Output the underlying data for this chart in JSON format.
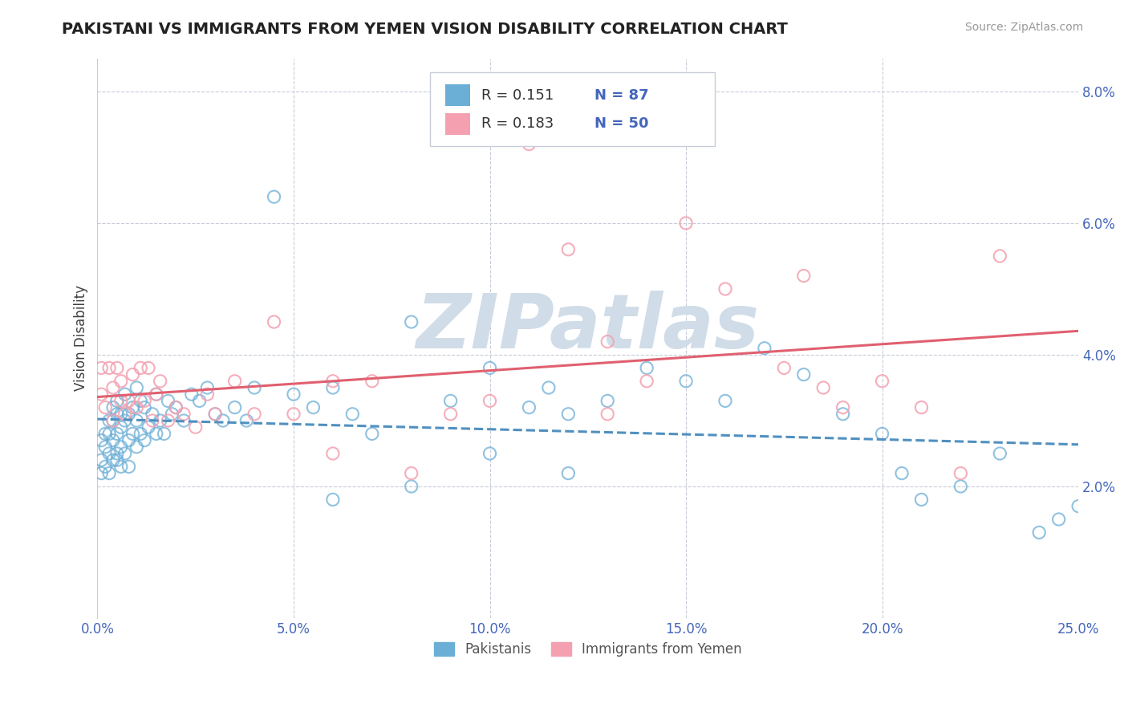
{
  "title": "PAKISTANI VS IMMIGRANTS FROM YEMEN VISION DISABILITY CORRELATION CHART",
  "source": "Source: ZipAtlas.com",
  "ylabel": "Vision Disability",
  "xlim": [
    0.0,
    0.25
  ],
  "ylim": [
    0.0,
    0.085
  ],
  "xticks": [
    0.0,
    0.05,
    0.1,
    0.15,
    0.2,
    0.25
  ],
  "yticks": [
    0.02,
    0.04,
    0.06,
    0.08
  ],
  "xticklabels": [
    "0.0%",
    "5.0%",
    "10.0%",
    "15.0%",
    "20.0%",
    "25.0%"
  ],
  "yticklabels": [
    "2.0%",
    "4.0%",
    "6.0%",
    "8.0%"
  ],
  "legend_r1": "R = 0.151",
  "legend_n1": "N = 87",
  "legend_r2": "R = 0.183",
  "legend_n2": "N = 50",
  "label1": "Pakistanis",
  "label2": "Immigrants from Yemen",
  "color1": "#6baed6",
  "color2": "#f4a0b0",
  "trendline1_color": "#5090c0",
  "trendline2_color": "#e06070",
  "watermark": "ZIPatlas",
  "watermark_color": "#d0dce8",
  "pakistanis_x": [
    0.001,
    0.001,
    0.001,
    0.002,
    0.002,
    0.002,
    0.003,
    0.003,
    0.003,
    0.003,
    0.004,
    0.004,
    0.004,
    0.004,
    0.005,
    0.005,
    0.005,
    0.005,
    0.005,
    0.006,
    0.006,
    0.006,
    0.006,
    0.007,
    0.007,
    0.007,
    0.008,
    0.008,
    0.008,
    0.009,
    0.009,
    0.01,
    0.01,
    0.01,
    0.011,
    0.011,
    0.012,
    0.012,
    0.013,
    0.014,
    0.015,
    0.015,
    0.016,
    0.017,
    0.018,
    0.019,
    0.02,
    0.022,
    0.024,
    0.026,
    0.028,
    0.03,
    0.032,
    0.035,
    0.038,
    0.04,
    0.045,
    0.05,
    0.055,
    0.06,
    0.065,
    0.07,
    0.08,
    0.09,
    0.1,
    0.11,
    0.115,
    0.12,
    0.13,
    0.14,
    0.15,
    0.16,
    0.17,
    0.18,
    0.19,
    0.2,
    0.205,
    0.21,
    0.22,
    0.23,
    0.24,
    0.245,
    0.25,
    0.12,
    0.1,
    0.08,
    0.06
  ],
  "pakistanis_y": [
    0.024,
    0.027,
    0.022,
    0.026,
    0.028,
    0.023,
    0.025,
    0.028,
    0.03,
    0.022,
    0.027,
    0.03,
    0.024,
    0.032,
    0.025,
    0.028,
    0.031,
    0.024,
    0.033,
    0.026,
    0.029,
    0.023,
    0.031,
    0.025,
    0.03,
    0.034,
    0.027,
    0.031,
    0.023,
    0.028,
    0.032,
    0.026,
    0.03,
    0.035,
    0.028,
    0.033,
    0.027,
    0.032,
    0.029,
    0.031,
    0.028,
    0.034,
    0.03,
    0.028,
    0.033,
    0.031,
    0.032,
    0.03,
    0.034,
    0.033,
    0.035,
    0.031,
    0.03,
    0.032,
    0.03,
    0.035,
    0.064,
    0.034,
    0.032,
    0.035,
    0.031,
    0.028,
    0.045,
    0.033,
    0.038,
    0.032,
    0.035,
    0.031,
    0.033,
    0.038,
    0.036,
    0.033,
    0.041,
    0.037,
    0.031,
    0.028,
    0.022,
    0.018,
    0.02,
    0.025,
    0.013,
    0.015,
    0.017,
    0.022,
    0.025,
    0.02,
    0.018
  ],
  "yemen_x": [
    0.001,
    0.001,
    0.002,
    0.003,
    0.004,
    0.004,
    0.005,
    0.006,
    0.006,
    0.007,
    0.008,
    0.009,
    0.01,
    0.011,
    0.012,
    0.013,
    0.014,
    0.015,
    0.016,
    0.018,
    0.02,
    0.022,
    0.025,
    0.028,
    0.03,
    0.035,
    0.04,
    0.045,
    0.05,
    0.06,
    0.07,
    0.08,
    0.09,
    0.1,
    0.11,
    0.12,
    0.13,
    0.14,
    0.15,
    0.16,
    0.175,
    0.18,
    0.185,
    0.19,
    0.2,
    0.21,
    0.22,
    0.23,
    0.13,
    0.06
  ],
  "yemen_y": [
    0.034,
    0.038,
    0.032,
    0.038,
    0.03,
    0.035,
    0.038,
    0.033,
    0.036,
    0.031,
    0.033,
    0.037,
    0.032,
    0.038,
    0.033,
    0.038,
    0.03,
    0.034,
    0.036,
    0.03,
    0.032,
    0.031,
    0.029,
    0.034,
    0.031,
    0.036,
    0.031,
    0.045,
    0.031,
    0.036,
    0.036,
    0.022,
    0.031,
    0.033,
    0.072,
    0.056,
    0.042,
    0.036,
    0.06,
    0.05,
    0.038,
    0.052,
    0.035,
    0.032,
    0.036,
    0.032,
    0.022,
    0.055,
    0.031,
    0.025
  ]
}
